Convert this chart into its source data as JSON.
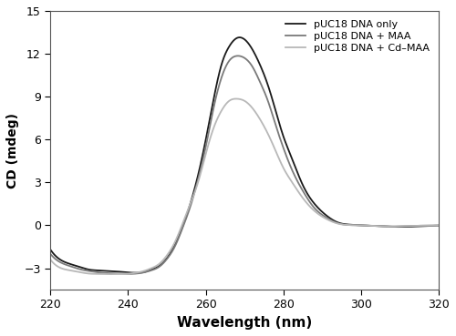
{
  "title": "",
  "xlabel": "Wavelength (nm)",
  "ylabel": "CD (mdeg)",
  "xlim": [
    220,
    320
  ],
  "ylim": [
    -4.5,
    15
  ],
  "yticks": [
    -3,
    0,
    3,
    6,
    9,
    12,
    15
  ],
  "xticks": [
    220,
    240,
    260,
    280,
    300,
    320
  ],
  "line1_color": "#1a1a1a",
  "line2_color": "#7a7a7a",
  "line3_color": "#b8b8b8",
  "legend_labels": [
    "pUC18 DNA only",
    "pUC18 DNA + MAA",
    "pUC18 DNA + Cd–MAA"
  ],
  "line1_x": [
    220,
    222,
    225,
    228,
    230,
    232,
    235,
    238,
    240,
    242,
    244,
    246,
    248,
    250,
    252,
    254,
    256,
    258,
    260,
    262,
    264,
    266,
    268,
    270,
    272,
    274,
    276,
    278,
    280,
    282,
    285,
    288,
    291,
    294,
    297,
    300,
    304,
    308,
    312,
    316,
    320
  ],
  "line1_y": [
    -1.7,
    -2.3,
    -2.7,
    -2.95,
    -3.1,
    -3.15,
    -3.2,
    -3.25,
    -3.3,
    -3.32,
    -3.28,
    -3.1,
    -2.85,
    -2.3,
    -1.4,
    -0.1,
    1.5,
    3.5,
    6.0,
    8.8,
    11.2,
    12.5,
    13.1,
    13.0,
    12.3,
    11.2,
    9.8,
    8.0,
    6.2,
    4.8,
    2.8,
    1.5,
    0.7,
    0.2,
    0.05,
    0.0,
    -0.05,
    -0.1,
    -0.1,
    -0.05,
    -0.02
  ],
  "line2_x": [
    220,
    222,
    225,
    228,
    230,
    232,
    235,
    238,
    240,
    242,
    244,
    246,
    248,
    250,
    252,
    254,
    256,
    258,
    260,
    262,
    264,
    266,
    268,
    270,
    272,
    274,
    276,
    278,
    280,
    282,
    285,
    288,
    291,
    294,
    297,
    300,
    304,
    308,
    312,
    316,
    320
  ],
  "line2_y": [
    -2.0,
    -2.5,
    -2.85,
    -3.1,
    -3.2,
    -3.28,
    -3.35,
    -3.38,
    -3.4,
    -3.38,
    -3.3,
    -3.15,
    -2.9,
    -2.35,
    -1.5,
    -0.2,
    1.3,
    3.2,
    5.5,
    8.2,
    10.3,
    11.5,
    11.85,
    11.7,
    11.1,
    10.0,
    8.7,
    7.0,
    5.4,
    4.0,
    2.4,
    1.2,
    0.55,
    0.15,
    0.02,
    0.0,
    -0.05,
    -0.08,
    -0.05,
    -0.02,
    -0.01
  ],
  "line3_x": [
    220,
    222,
    225,
    228,
    230,
    232,
    235,
    238,
    240,
    242,
    244,
    246,
    248,
    250,
    252,
    254,
    256,
    258,
    260,
    262,
    264,
    266,
    268,
    270,
    272,
    274,
    276,
    278,
    280,
    282,
    285,
    288,
    291,
    294,
    297,
    300,
    304,
    308,
    312,
    316,
    320
  ],
  "line3_y": [
    -2.4,
    -2.9,
    -3.15,
    -3.3,
    -3.38,
    -3.4,
    -3.42,
    -3.4,
    -3.38,
    -3.32,
    -3.2,
    -3.0,
    -2.7,
    -2.1,
    -1.2,
    0.1,
    1.5,
    3.0,
    5.0,
    6.8,
    8.0,
    8.7,
    8.85,
    8.7,
    8.2,
    7.4,
    6.4,
    5.2,
    4.0,
    3.1,
    1.9,
    1.0,
    0.45,
    0.12,
    0.02,
    0.0,
    -0.05,
    -0.08,
    -0.05,
    -0.02,
    -0.01
  ]
}
